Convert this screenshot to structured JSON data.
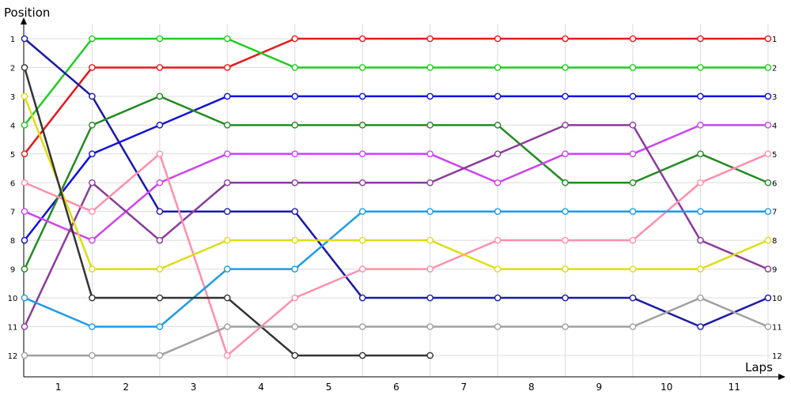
{
  "chart_data": {
    "type": "line",
    "title": "",
    "ylabel": "Position",
    "xlabel": "Laps",
    "x": [
      0,
      1,
      2,
      3,
      4,
      5,
      6,
      7,
      8,
      9,
      10,
      11
    ],
    "x_tick_labels": [
      "1",
      "2",
      "3",
      "4",
      "5",
      "6",
      "7",
      "8",
      "9",
      "10",
      "11"
    ],
    "y_tick_labels": [
      "1",
      "2",
      "3",
      "4",
      "5",
      "6",
      "7",
      "8",
      "9",
      "10",
      "11",
      "12"
    ],
    "ylim": [
      1,
      12
    ],
    "y_inverted": true,
    "grid": true,
    "legend": "none",
    "series": [
      {
        "color": "#E41A1C",
        "values": [
          5,
          2,
          2,
          2,
          1,
          1,
          1,
          1,
          1,
          1,
          1,
          1
        ]
      },
      {
        "color": "#22CC22",
        "values": [
          4,
          1,
          1,
          1,
          2,
          2,
          2,
          2,
          2,
          2,
          2,
          2
        ]
      },
      {
        "color": "#1A1AA8",
        "values": [
          1,
          3,
          7,
          7,
          7,
          10,
          10,
          10,
          10,
          10,
          11,
          10
        ]
      },
      {
        "color": "#1010DD",
        "values": [
          8,
          5,
          4,
          3,
          3,
          3,
          3,
          3,
          3,
          3,
          3,
          3
        ]
      },
      {
        "color": "#228B22",
        "values": [
          9,
          4,
          3,
          4,
          4,
          4,
          4,
          4,
          6,
          6,
          5,
          6
        ]
      },
      {
        "color": "#CC44EE",
        "values": [
          7,
          8,
          6,
          5,
          5,
          5,
          5,
          6,
          5,
          5,
          4,
          4
        ]
      },
      {
        "color": "#8B3A9B",
        "values": [
          11,
          6,
          8,
          6,
          6,
          6,
          6,
          5,
          4,
          4,
          8,
          9
        ]
      },
      {
        "color": "#FF8FAB",
        "values": [
          6,
          7,
          5,
          12,
          10,
          9,
          9,
          8,
          8,
          8,
          6,
          5
        ]
      },
      {
        "color": "#1E9BE6",
        "values": [
          10,
          11,
          11,
          9,
          9,
          7,
          7,
          7,
          7,
          7,
          7,
          7
        ]
      },
      {
        "color": "#DDDD11",
        "values": [
          3,
          9,
          9,
          8,
          8,
          8,
          8,
          9,
          9,
          9,
          9,
          8
        ]
      },
      {
        "color": "#333333",
        "values": [
          2,
          10,
          10,
          10,
          12,
          12,
          12,
          null,
          null,
          null,
          null,
          null
        ]
      },
      {
        "color": "#A0A0A0",
        "values": [
          12,
          12,
          12,
          11,
          11,
          11,
          11,
          11,
          11,
          11,
          10,
          11
        ]
      }
    ]
  }
}
